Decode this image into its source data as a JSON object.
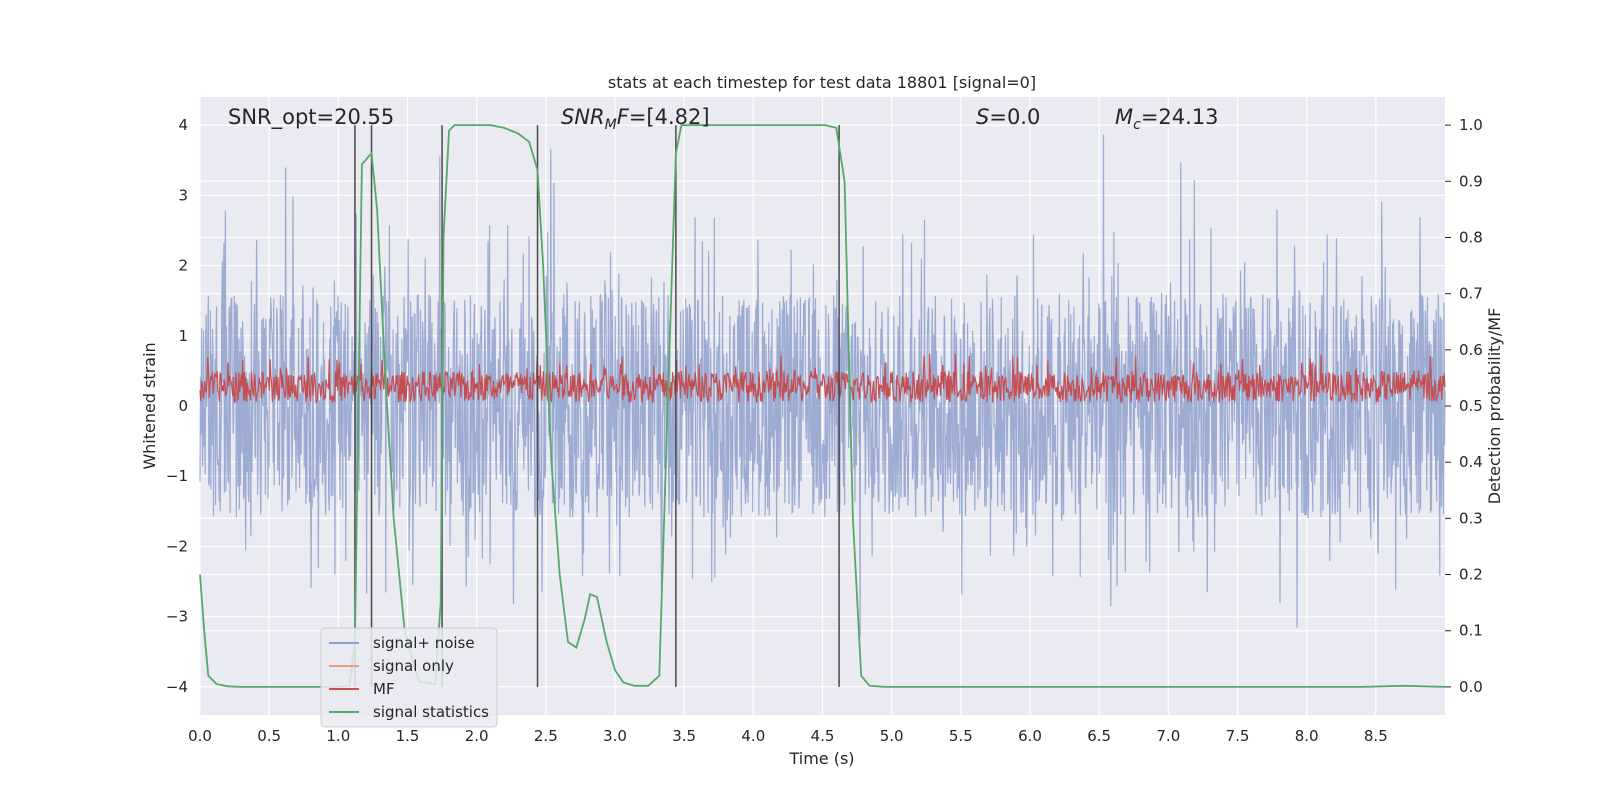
{
  "chart_data": {
    "type": "line",
    "title": "stats at each timestep for test data 18801 [signal=0]",
    "xlabel": "Time (s)",
    "ylabel_left": "Whitened strain",
    "ylabel_right": "Detection probability/MF",
    "xlim": [
      0,
      9.0
    ],
    "ylim_left": [
      -4.4,
      4.4
    ],
    "ylim_right": [
      -0.05,
      1.05
    ],
    "grid": true,
    "x_ticks": [
      "0.0",
      "0.5",
      "1.0",
      "1.5",
      "2.0",
      "2.5",
      "3.0",
      "3.5",
      "4.0",
      "4.5",
      "5.0",
      "5.5",
      "6.0",
      "6.5",
      "7.0",
      "7.5",
      "8.0",
      "8.5"
    ],
    "y_ticks_left": [
      "4",
      "3",
      "2",
      "1",
      "0",
      "−1",
      "−2",
      "−3",
      "−4"
    ],
    "y_ticks_right": [
      "1.0",
      "0.9",
      "0.8",
      "0.7",
      "0.6",
      "0.5",
      "0.4",
      "0.3",
      "0.2",
      "0.1",
      "0.0"
    ],
    "annotations": [
      {
        "name": "snr-opt",
        "text": "SNR_opt=20.55",
        "italic": false
      },
      {
        "name": "snr-mf",
        "text": "SNR",
        "sub": "M",
        "after": "F=[4.82]",
        "italic": true
      },
      {
        "name": "s-stat",
        "text": "S",
        "after": "=0.0",
        "italic": true
      },
      {
        "name": "mc",
        "text": "M",
        "sub": "c",
        "after": "=24.13",
        "italic": true
      }
    ],
    "legend": {
      "placement": "lower-left",
      "entries": [
        {
          "label": "signal+ noise",
          "color": "#8da0cb"
        },
        {
          "label": "signal only",
          "color": "#e8a07d"
        },
        {
          "label": "MF",
          "color": "#c44e52"
        },
        {
          "label": "signal statistics",
          "color": "#55a868"
        }
      ]
    },
    "vertical_markers_s": [
      1.12,
      1.24,
      1.75,
      2.44,
      3.44,
      4.62
    ],
    "series": [
      {
        "name": "signal+ noise",
        "axis": "left",
        "color": "#8da0cb",
        "description_range": [
          -3.8,
          3.9
        ],
        "typical_envelope": [
          -1.6,
          1.6
        ]
      },
      {
        "name": "MF",
        "axis": "left",
        "color": "#c44e52",
        "typical_range": [
          0.0,
          0.75
        ]
      },
      {
        "name": "signal statistics",
        "axis": "right",
        "color": "#55a868",
        "x": [
          0.0,
          0.03,
          0.06,
          0.12,
          0.2,
          0.3,
          0.5,
          0.8,
          1.0,
          1.08,
          1.12,
          1.17,
          1.24,
          1.28,
          1.34,
          1.4,
          1.48,
          1.58,
          1.7,
          1.74,
          1.76,
          1.8,
          1.84,
          1.9,
          2.0,
          2.1,
          2.2,
          2.3,
          2.38,
          2.44,
          2.48,
          2.54,
          2.6,
          2.66,
          2.72,
          2.78,
          2.82,
          2.87,
          2.94,
          3.0,
          3.06,
          3.14,
          3.24,
          3.32,
          3.38,
          3.44,
          3.48,
          3.52,
          3.6,
          3.8,
          4.0,
          4.2,
          4.4,
          4.52,
          4.6,
          4.66,
          4.72,
          4.78,
          4.84,
          4.95,
          5.5,
          6.5,
          7.5,
          8.4,
          8.7,
          9.0
        ],
        "values": [
          0.2,
          0.1,
          0.02,
          0.005,
          0.001,
          0.0,
          0.0,
          0.0,
          0.0,
          0.002,
          0.08,
          0.93,
          0.95,
          0.85,
          0.55,
          0.3,
          0.1,
          0.01,
          0.005,
          0.15,
          0.8,
          0.99,
          1.0,
          1.0,
          1.0,
          1.0,
          0.995,
          0.985,
          0.97,
          0.92,
          0.75,
          0.4,
          0.2,
          0.08,
          0.07,
          0.12,
          0.165,
          0.16,
          0.08,
          0.03,
          0.008,
          0.002,
          0.002,
          0.02,
          0.5,
          0.95,
          1.0,
          1.0,
          1.0,
          1.0,
          1.0,
          1.0,
          1.0,
          1.0,
          0.995,
          0.9,
          0.3,
          0.02,
          0.002,
          0.0,
          0.0,
          0.0,
          0.0,
          0.0,
          0.002,
          0.0
        ]
      }
    ]
  }
}
